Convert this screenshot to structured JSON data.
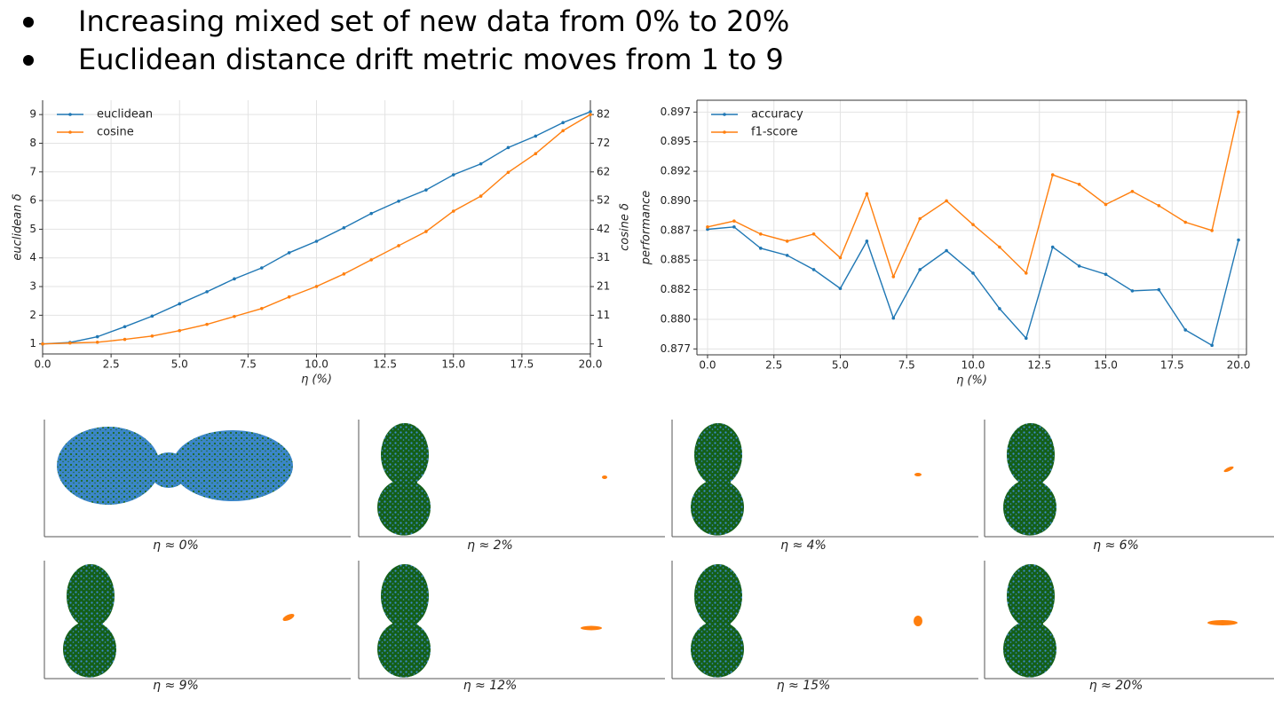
{
  "bullets": [
    "Increasing mixed set of new data from 0% to 20%",
    "Euclidean distance drift metric moves from 1 to 9"
  ],
  "chart_data": [
    {
      "type": "line",
      "x_label": "η (%)",
      "y_label": "euclidean δ",
      "y2_label": "cosine δ",
      "x": [
        0,
        1,
        2,
        3,
        4,
        5,
        6,
        7,
        8,
        9,
        10,
        11,
        12,
        13,
        14,
        15,
        16,
        17,
        18,
        19,
        20
      ],
      "xlim": [
        0,
        20
      ],
      "xticks": [
        {
          "value": 0,
          "label": "0.0"
        },
        {
          "value": 2.5,
          "label": "2.5"
        },
        {
          "value": 5,
          "label": "5.0"
        },
        {
          "value": 7.5,
          "label": "7.5"
        },
        {
          "value": 10,
          "label": "10.0"
        },
        {
          "value": 12.5,
          "label": "12.5"
        },
        {
          "value": 15,
          "label": "15.0"
        },
        {
          "value": 17.5,
          "label": "17.5"
        },
        {
          "value": 20,
          "label": "20.0"
        }
      ],
      "ylim": [
        0.65,
        9.5
      ],
      "yticks": [
        1,
        2,
        3,
        4,
        5,
        6,
        7,
        8,
        9
      ],
      "y2lim": [
        -2.54,
        87.06
      ],
      "y2ticks": [
        1,
        {
          "value": 11.125,
          "label": "11"
        },
        {
          "value": 21.25,
          "label": "21"
        },
        {
          "value": 31.375,
          "label": "31"
        },
        {
          "value": 41.5,
          "label": "42"
        },
        {
          "value": 51.625,
          "label": "52"
        },
        {
          "value": 61.75,
          "label": "62"
        },
        {
          "value": 71.875,
          "label": "72"
        },
        82
      ],
      "grid": true,
      "legend": "upper left",
      "series": [
        {
          "name": "euclidean",
          "color": "#1f77b4",
          "values": [
            1,
            1.05,
            1.25,
            1.6,
            1.97,
            2.4,
            2.82,
            3.27,
            3.65,
            4.18,
            4.58,
            5.05,
            5.55,
            5.98,
            6.37,
            6.9,
            7.28,
            7.85,
            8.25,
            8.72,
            9.1
          ]
        },
        {
          "name": "cosine",
          "color": "#ff7f0e",
          "axis": "y2",
          "values": [
            1,
            1.3,
            1.6,
            2.6,
            3.8,
            5.7,
            7.9,
            10.7,
            13.5,
            17.6,
            21.3,
            25.7,
            30.7,
            35.7,
            40.7,
            47.9,
            53.2,
            61.6,
            68.2,
            76.3,
            82
          ]
        }
      ]
    },
    {
      "type": "line",
      "x_label": "η (%)",
      "y_label": "performance",
      "x": [
        0,
        1,
        2,
        3,
        4,
        5,
        6,
        7,
        8,
        9,
        10,
        11,
        12,
        13,
        14,
        15,
        16,
        17,
        18,
        19,
        20
      ],
      "xlim": [
        -0.4,
        20.3
      ],
      "xticks": [
        {
          "value": 0,
          "label": "0.0"
        },
        {
          "value": 2.5,
          "label": "2.5"
        },
        {
          "value": 5,
          "label": "5.0"
        },
        {
          "value": 7.5,
          "label": "7.5"
        },
        {
          "value": 10,
          "label": "10.0"
        },
        {
          "value": 12.5,
          "label": "12.5"
        },
        {
          "value": 15,
          "label": "15.0"
        },
        {
          "value": 17.5,
          "label": "17.5"
        },
        {
          "value": 20,
          "label": "20.0"
        }
      ],
      "ylim": [
        0.8767,
        0.8982
      ],
      "yticks": [
        {
          "value": 0.8772,
          "label": "0.877"
        },
        {
          "value": 0.8797,
          "label": "0.880"
        },
        {
          "value": 0.8822,
          "label": "0.882"
        },
        {
          "value": 0.8847,
          "label": "0.885"
        },
        {
          "value": 0.8872,
          "label": "0.887"
        },
        {
          "value": 0.8897,
          "label": "0.890"
        },
        {
          "value": 0.8922,
          "label": "0.892"
        },
        {
          "value": 0.8947,
          "label": "0.895"
        },
        {
          "value": 0.8972,
          "label": "0.897"
        }
      ],
      "grid": true,
      "legend": "upper left",
      "series": [
        {
          "name": "accuracy",
          "color": "#1f77b4",
          "values": [
            0.8873,
            0.8875,
            0.8857,
            0.8851,
            0.8839,
            0.8823,
            0.8863,
            0.8798,
            0.8839,
            0.8855,
            0.8836,
            0.8806,
            0.8781,
            0.8858,
            0.8842,
            0.8835,
            0.8821,
            0.8822,
            0.8788,
            0.8775,
            0.8864
          ]
        },
        {
          "name": "f1-score",
          "color": "#ff7f0e",
          "values": [
            0.8875,
            0.888,
            0.8869,
            0.8863,
            0.8869,
            0.8849,
            0.8903,
            0.8833,
            0.8882,
            0.8897,
            0.8877,
            0.8858,
            0.8836,
            0.8919,
            0.8911,
            0.8894,
            0.8905,
            0.8893,
            0.8879,
            0.8872,
            0.8972
          ]
        }
      ]
    }
  ],
  "panels": [
    {
      "caption": "η ≈ 0%"
    },
    {
      "caption": "η ≈ 2%"
    },
    {
      "caption": "η ≈ 4%"
    },
    {
      "caption": "η ≈ 6%"
    },
    {
      "caption": "η ≈ 9%"
    },
    {
      "caption": "η ≈ 12%"
    },
    {
      "caption": "η ≈ 15%"
    },
    {
      "caption": "η ≈ 20%"
    }
  ]
}
